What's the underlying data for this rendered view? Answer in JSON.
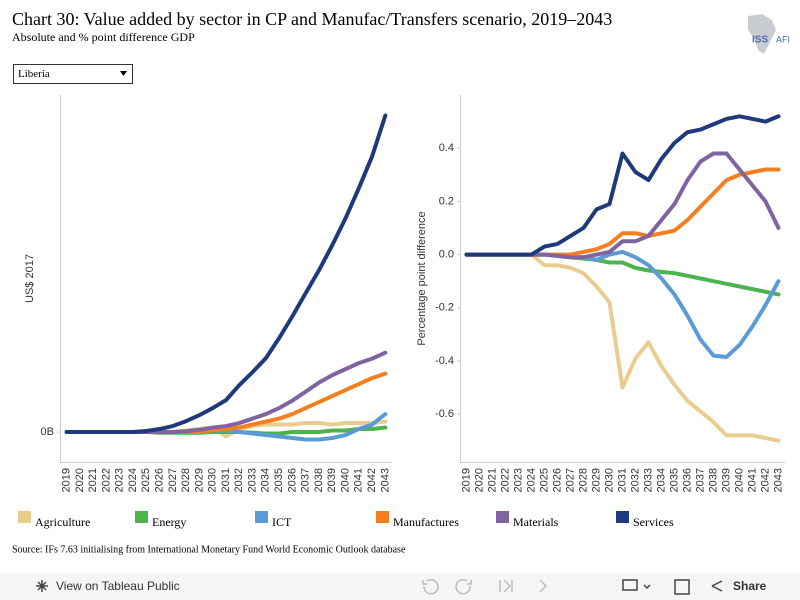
{
  "header": {
    "title": "Chart 30: Value added by sector in CP and Manufac/Transfers scenario, 2019–2043",
    "subtitle": "Absolute and % point difference GDP",
    "logo": [
      "ISS",
      "AFI"
    ]
  },
  "dropdown": {
    "selected": "Liberia"
  },
  "source": "Source: IFs 7.63 initialising from International Monetary Fund World Economic Outlook database",
  "toolbar": {
    "view": "View on Tableau Public",
    "share": "Share"
  },
  "chart_data": [
    {
      "type": "line",
      "ylabel": "US$ 2017",
      "categories": [
        "2019",
        "2020",
        "2021",
        "2022",
        "2023",
        "2024",
        "2025",
        "2026",
        "2027",
        "2028",
        "2029",
        "2030",
        "2031",
        "2032",
        "2033",
        "2034",
        "2035",
        "2036",
        "2037",
        "2038",
        "2039",
        "2040",
        "2041",
        "2042",
        "2043"
      ],
      "ylim": [
        -2,
        22.5
      ],
      "yticks": [
        {
          "value": 0,
          "label": "0B"
        }
      ],
      "series": [
        {
          "name": "Agriculture",
          "color": "#e8cd8f",
          "values": [
            0,
            0,
            0,
            0,
            0,
            0,
            0,
            0,
            0,
            0.1,
            0.2,
            0.3,
            -0.3,
            0.2,
            0.4,
            0.5,
            0.5,
            0.5,
            0.6,
            0.6,
            0.5,
            0.6,
            0.6,
            0.6,
            0.7
          ]
        },
        {
          "name": "Energy",
          "color": "#4db34d",
          "values": [
            0,
            0,
            0,
            0,
            0,
            0,
            0,
            -0.05,
            -0.05,
            -0.05,
            -0.05,
            0,
            0,
            0,
            -0.05,
            -0.1,
            -0.1,
            0,
            0,
            0,
            0.1,
            0.1,
            0.2,
            0.2,
            0.3
          ]
        },
        {
          "name": "ICT",
          "color": "#5b9bd5",
          "values": [
            0,
            0,
            0,
            0,
            0,
            0,
            0,
            0,
            0,
            0,
            0.05,
            0.1,
            0.1,
            0,
            -0.1,
            -0.2,
            -0.3,
            -0.4,
            -0.5,
            -0.5,
            -0.4,
            -0.2,
            0.2,
            0.5,
            1.2
          ]
        },
        {
          "name": "Manufactures",
          "color": "#f57f20",
          "values": [
            0,
            0,
            0,
            0,
            0,
            0,
            0,
            0,
            0,
            0,
            0.05,
            0.1,
            0.2,
            0.3,
            0.5,
            0.7,
            0.9,
            1.2,
            1.6,
            2.0,
            2.4,
            2.8,
            3.2,
            3.6,
            3.9
          ]
        },
        {
          "name": "Materials",
          "color": "#8064a2",
          "values": [
            0,
            0,
            0,
            0,
            0,
            0,
            0,
            0,
            0,
            0.05,
            0.15,
            0.3,
            0.4,
            0.6,
            0.9,
            1.2,
            1.6,
            2.1,
            2.7,
            3.3,
            3.8,
            4.2,
            4.6,
            4.9,
            5.3
          ]
        },
        {
          "name": "Services",
          "color": "#1f3a7a",
          "values": [
            0,
            0,
            0,
            0,
            0,
            0,
            0.07,
            0.2,
            0.4,
            0.73,
            1.13,
            1.6,
            2.13,
            3.13,
            4.0,
            4.93,
            6.27,
            7.73,
            9.27,
            10.8,
            12.47,
            14.27,
            16.27,
            18.4,
            21.13
          ]
        }
      ]
    },
    {
      "type": "line",
      "ylabel": "Percentage point difference",
      "categories": [
        "2019",
        "2020",
        "2021",
        "2022",
        "2023",
        "2024",
        "2025",
        "2026",
        "2027",
        "2028",
        "2029",
        "2030",
        "2031",
        "2032",
        "2033",
        "2034",
        "2035",
        "2036",
        "2037",
        "2038",
        "2039",
        "2040",
        "2041",
        "2042",
        "2043"
      ],
      "ylim": [
        -0.78,
        0.6
      ],
      "yticks": [
        -0.6,
        -0.4,
        -0.2,
        {
          "value": 0,
          "label": "0.0"
        },
        0.2,
        0.4
      ],
      "series": [
        {
          "name": "Agriculture",
          "color": "#e8cd8f",
          "values": [
            0,
            0,
            0,
            0,
            0,
            0,
            -0.04,
            -0.04,
            -0.05,
            -0.07,
            -0.12,
            -0.18,
            -0.5,
            -0.39,
            -0.33,
            -0.42,
            -0.49,
            -0.55,
            -0.59,
            -0.63,
            -0.68,
            -0.68,
            -0.68,
            -0.69,
            -0.7
          ]
        },
        {
          "name": "Energy",
          "color": "#4db34d",
          "values": [
            0,
            0,
            0,
            0,
            0,
            0,
            0,
            -0.005,
            -0.01,
            -0.015,
            -0.02,
            -0.03,
            -0.03,
            -0.05,
            -0.06,
            -0.065,
            -0.07,
            -0.08,
            -0.09,
            -0.1,
            -0.11,
            -0.12,
            -0.13,
            -0.14,
            -0.15
          ]
        },
        {
          "name": "ICT",
          "color": "#5b9bd5",
          "values": [
            0,
            0,
            0,
            0,
            0,
            0,
            0,
            -0.005,
            -0.01,
            -0.01,
            -0.02,
            0,
            0.01,
            -0.01,
            -0.04,
            -0.09,
            -0.15,
            -0.23,
            -0.32,
            -0.38,
            -0.385,
            -0.34,
            -0.27,
            -0.19,
            -0.1
          ]
        },
        {
          "name": "Manufactures",
          "color": "#f57f20",
          "values": [
            0,
            0,
            0,
            0,
            0,
            0,
            0,
            0,
            0,
            0.01,
            0.02,
            0.04,
            0.08,
            0.08,
            0.07,
            0.08,
            0.09,
            0.13,
            0.18,
            0.23,
            0.28,
            0.3,
            0.31,
            0.32,
            0.32
          ]
        },
        {
          "name": "Materials",
          "color": "#8064a2",
          "values": [
            0,
            0,
            0,
            0,
            0,
            0,
            0,
            -0.005,
            -0.01,
            -0.01,
            0,
            0.01,
            0.05,
            0.05,
            0.07,
            0.13,
            0.19,
            0.28,
            0.35,
            0.38,
            0.38,
            0.32,
            0.26,
            0.2,
            0.1
          ]
        },
        {
          "name": "Services",
          "color": "#1f3a7a",
          "values": [
            0,
            0,
            0,
            0,
            0,
            0,
            0.03,
            0.04,
            0.07,
            0.1,
            0.17,
            0.19,
            0.38,
            0.31,
            0.28,
            0.36,
            0.42,
            0.46,
            0.47,
            0.49,
            0.51,
            0.52,
            0.51,
            0.5,
            0.52
          ]
        }
      ]
    }
  ]
}
